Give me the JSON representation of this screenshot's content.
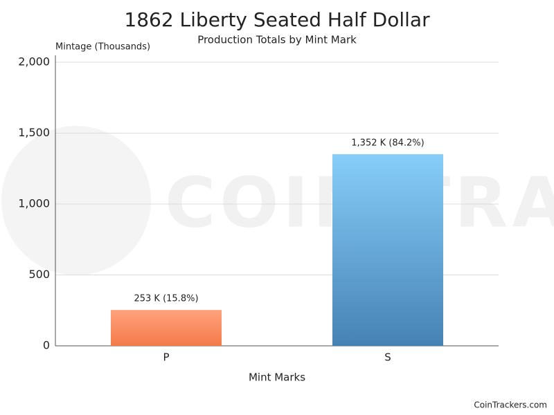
{
  "chart_data": {
    "type": "bar",
    "title": "1862 Liberty Seated Half Dollar",
    "subtitle": "Production Totals by Mint Mark",
    "y_label": "Mintage (Thousands)",
    "x_label": "Mint Marks",
    "categories": [
      "P",
      "S"
    ],
    "values": [
      253,
      1352
    ],
    "value_labels": [
      "253 K (15.8%)",
      "1,352 K (84.2%)"
    ],
    "gradients": [
      [
        "#ffa27c",
        "#f47a4a"
      ],
      [
        "#87cefa",
        "#4682b4"
      ]
    ],
    "ylim": [
      0,
      2000
    ],
    "yticks": [
      0,
      500,
      {
        "value": 1000,
        "label": "1,000"
      },
      {
        "value": 1500,
        "label": "1,500"
      },
      {
        "value": 2000,
        "label": "2,000"
      }
    ],
    "grid": true,
    "watermark": "COIN TRACKERS",
    "credit": "CoinTrackers.com"
  }
}
